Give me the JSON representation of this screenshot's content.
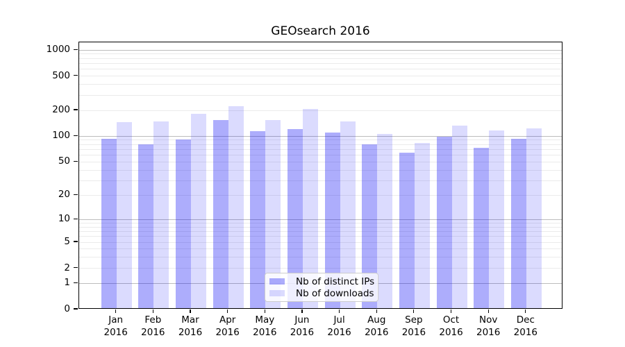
{
  "title": "GEOsearch 2016",
  "chart_data": {
    "type": "bar",
    "title": "GEOsearch 2016",
    "categories": [
      "Jan 2016",
      "Feb 2016",
      "Mar 2016",
      "Apr 2016",
      "May 2016",
      "Jun 2016",
      "Jul 2016",
      "Aug 2016",
      "Sep 2016",
      "Oct 2016",
      "Nov 2016",
      "Dec 2016"
    ],
    "series": [
      {
        "name": "Nb of distinct IPs",
        "color": "rgba(10,10,245,0.335)",
        "values": [
          90,
          78,
          89,
          149,
          110,
          117,
          106,
          78,
          62,
          95,
          71,
          90
        ]
      },
      {
        "name": "Nb of downloads",
        "color": "rgba(10,10,245,0.145)",
        "values": [
          141,
          143,
          176,
          214,
          148,
          201,
          144,
          102,
          80,
          129,
          112,
          120
        ]
      }
    ],
    "xlabel": "",
    "ylabel": "",
    "yscale": "log1p",
    "ylim": [
      0,
      1200
    ],
    "yticks": [
      0,
      1,
      2,
      5,
      10,
      20,
      50,
      100,
      200,
      500,
      1000
    ],
    "major_gridlines": [
      1,
      10,
      100,
      1000
    ],
    "minor_gridlines": [
      2,
      3,
      4,
      5,
      6,
      7,
      8,
      9,
      20,
      30,
      40,
      50,
      60,
      70,
      80,
      90,
      200,
      300,
      400,
      500,
      600,
      700,
      800,
      900
    ],
    "grid": true,
    "legend_position": "lower center",
    "background": "#ffffff",
    "major_grid_color": "#bcbcbc",
    "minor_grid_color": "#ebebeb"
  }
}
